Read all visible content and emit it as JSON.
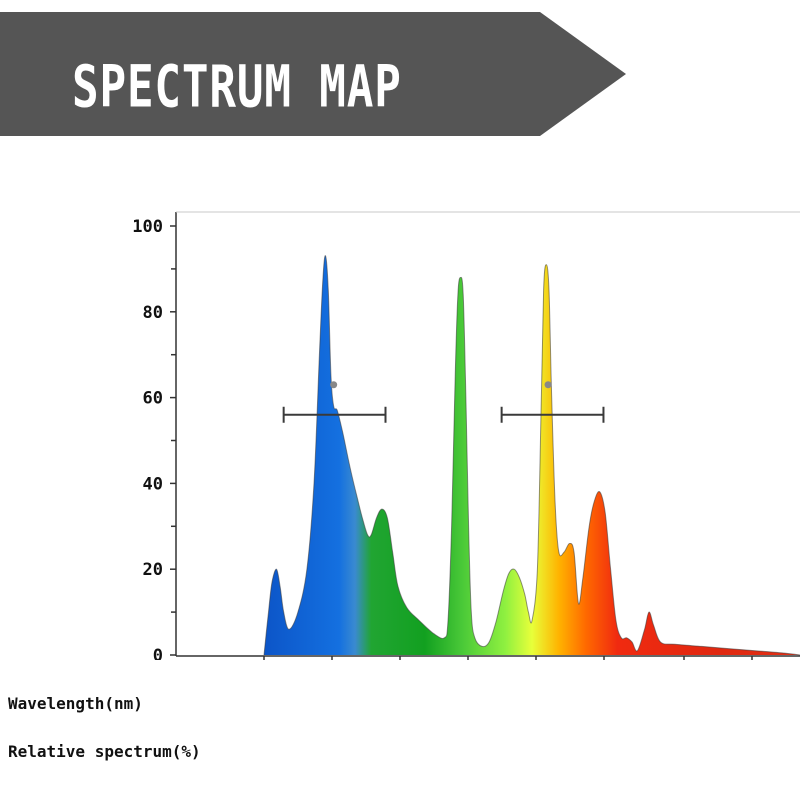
{
  "banner": {
    "title": "SPECTRUM MAP",
    "color": "#555555"
  },
  "labels": {
    "wavelength": "Wavelength(nm)",
    "relative": "Relative spectrum(%)"
  },
  "chart_data": {
    "type": "area",
    "title": "",
    "xlabel": "Wavelength(nm)",
    "ylabel": "Relative spectrum(%)",
    "ylim": [
      0,
      100
    ],
    "y_ticks": [
      100,
      80,
      60,
      40,
      20,
      0
    ],
    "x_tick_count": 9,
    "grid": false,
    "legend": "none",
    "series": [
      {
        "points": [
          [
            0.0,
            0
          ],
          [
            0.25,
            10
          ],
          [
            0.45,
            17
          ],
          [
            0.7,
            20
          ],
          [
            0.9,
            16
          ],
          [
            1.1,
            10
          ],
          [
            1.4,
            6
          ],
          [
            1.9,
            10
          ],
          [
            2.4,
            20
          ],
          [
            2.8,
            40
          ],
          [
            3.1,
            70
          ],
          [
            3.3,
            88
          ],
          [
            3.45,
            93
          ],
          [
            3.6,
            85
          ],
          [
            3.75,
            65
          ],
          [
            3.9,
            58
          ],
          [
            4.1,
            57
          ],
          [
            4.4,
            52
          ],
          [
            4.8,
            44
          ],
          [
            5.2,
            37
          ],
          [
            5.5,
            32
          ],
          [
            5.8,
            28
          ],
          [
            6.0,
            28
          ],
          [
            6.3,
            32
          ],
          [
            6.6,
            34
          ],
          [
            6.9,
            32
          ],
          [
            7.2,
            24
          ],
          [
            7.5,
            16
          ],
          [
            8.0,
            11
          ],
          [
            8.7,
            8
          ],
          [
            9.5,
            5
          ],
          [
            10.1,
            4
          ],
          [
            10.3,
            8
          ],
          [
            10.5,
            30
          ],
          [
            10.7,
            65
          ],
          [
            10.85,
            84
          ],
          [
            11.0,
            88
          ],
          [
            11.15,
            84
          ],
          [
            11.3,
            60
          ],
          [
            11.45,
            30
          ],
          [
            11.6,
            10
          ],
          [
            11.8,
            4
          ],
          [
            12.2,
            2
          ],
          [
            12.6,
            3
          ],
          [
            13.0,
            8
          ],
          [
            13.4,
            15
          ],
          [
            13.7,
            19
          ],
          [
            14.0,
            20
          ],
          [
            14.3,
            18
          ],
          [
            14.6,
            14
          ],
          [
            14.8,
            10
          ],
          [
            15.0,
            8
          ],
          [
            15.3,
            20
          ],
          [
            15.5,
            55
          ],
          [
            15.65,
            85
          ],
          [
            15.8,
            91
          ],
          [
            15.95,
            85
          ],
          [
            16.1,
            60
          ],
          [
            16.3,
            35
          ],
          [
            16.5,
            24
          ],
          [
            16.8,
            24
          ],
          [
            17.1,
            26
          ],
          [
            17.35,
            24
          ],
          [
            17.6,
            12
          ],
          [
            17.85,
            18
          ],
          [
            18.2,
            30
          ],
          [
            18.5,
            36
          ],
          [
            18.8,
            38
          ],
          [
            19.1,
            33
          ],
          [
            19.4,
            20
          ],
          [
            19.7,
            8
          ],
          [
            20.0,
            4
          ],
          [
            20.3,
            4
          ],
          [
            20.6,
            3
          ],
          [
            20.9,
            1
          ],
          [
            21.3,
            6
          ],
          [
            21.55,
            10
          ],
          [
            21.8,
            7
          ],
          [
            22.2,
            3
          ],
          [
            23.0,
            2.5
          ],
          [
            24.5,
            2
          ],
          [
            26.0,
            1.5
          ],
          [
            27.5,
            1
          ],
          [
            29.0,
            0.5
          ],
          [
            30.0,
            0
          ]
        ]
      }
    ],
    "error_bars": [
      {
        "center": 3.9,
        "y": 56,
        "low": 1.1,
        "high": 6.8
      },
      {
        "center": 15.9,
        "y": 56,
        "low": 13.3,
        "high": 19.0
      }
    ],
    "gradient_stops": [
      {
        "offset": 0.0,
        "color": "#0c55c8"
      },
      {
        "offset": 0.14,
        "color": "#1470e0"
      },
      {
        "offset": 0.17,
        "color": "#3a8ad0"
      },
      {
        "offset": 0.2,
        "color": "#21a532"
      },
      {
        "offset": 0.3,
        "color": "#12a020"
      },
      {
        "offset": 0.37,
        "color": "#4ac938"
      },
      {
        "offset": 0.45,
        "color": "#8ff040"
      },
      {
        "offset": 0.5,
        "color": "#e8ff3a"
      },
      {
        "offset": 0.55,
        "color": "#ffb300"
      },
      {
        "offset": 0.6,
        "color": "#ff6a00"
      },
      {
        "offset": 0.66,
        "color": "#f02a10"
      },
      {
        "offset": 0.85,
        "color": "#e02810"
      },
      {
        "offset": 1.0,
        "color": "#e23015"
      }
    ]
  }
}
